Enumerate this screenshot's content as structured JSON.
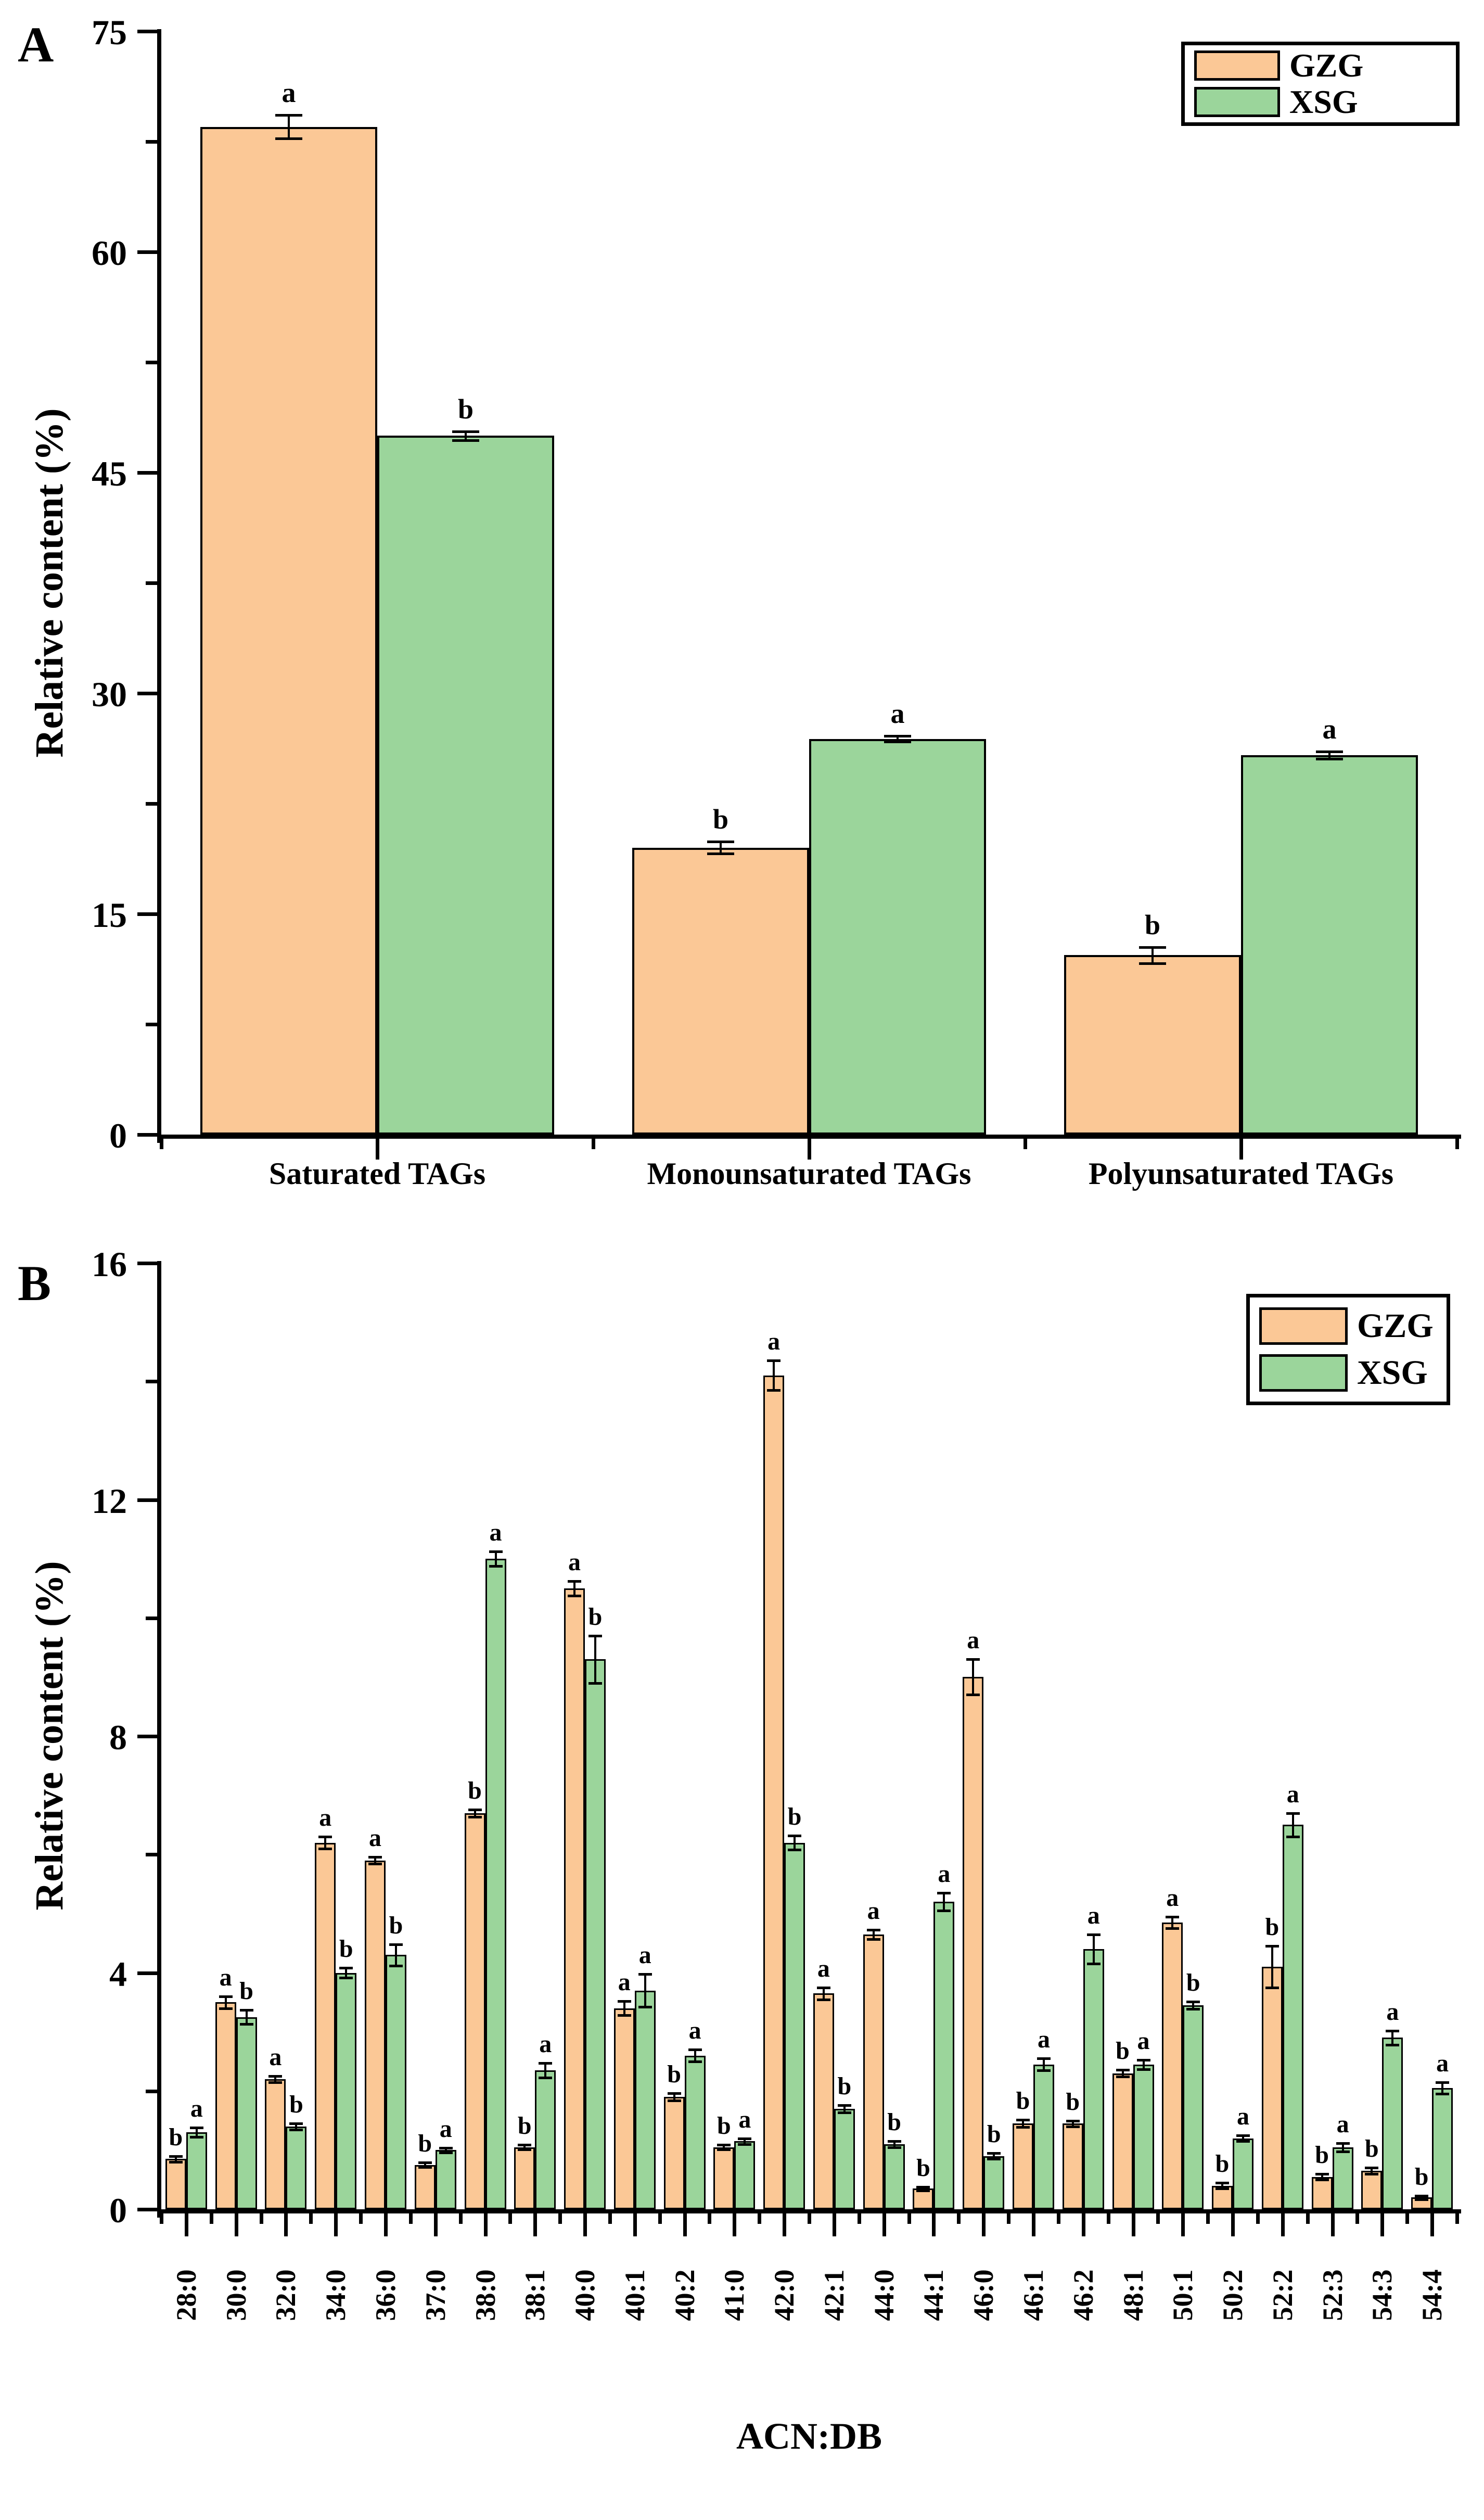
{
  "figure_title": "",
  "colors": {
    "gzg_fill": "#FBC896",
    "xsg_fill": "#9BD59B",
    "outline": "#000000",
    "background": "#FFFFFF"
  },
  "chart_data": [
    {
      "type": "bar",
      "panel_label": "A",
      "ylabel": "Relative content (%)",
      "xlabel": "",
      "ylim": [
        0,
        75
      ],
      "ytick_step": 15,
      "yminor_step": 7.5,
      "ytick_labels": [
        "0",
        "15",
        "30",
        "45",
        "60",
        "75"
      ],
      "grid": false,
      "legend": {
        "position": "top-right",
        "entries": [
          "GZG",
          "XSG"
        ]
      },
      "categories": [
        "Saturated TAGs",
        "Monounsaturated TAGs",
        "Polyunsaturated TAGs"
      ],
      "series": [
        {
          "name": "GZG",
          "color": "#FBC896",
          "values": [
            68.5,
            19.5,
            12.2
          ],
          "errors": [
            0.8,
            0.4,
            0.55
          ],
          "sig_letters": [
            "a",
            "b",
            "b"
          ]
        },
        {
          "name": "XSG",
          "color": "#9BD59B",
          "values": [
            47.5,
            26.9,
            25.8
          ],
          "errors": [
            0.3,
            0.2,
            0.25
          ],
          "sig_letters": [
            "b",
            "a",
            "a"
          ]
        }
      ]
    },
    {
      "type": "bar",
      "panel_label": "B",
      "ylabel": "Relative content (%)",
      "xlabel": "ACN:DB",
      "ylim": [
        0,
        16
      ],
      "ytick_step": 4,
      "yminor_step": 2,
      "ytick_labels": [
        "0",
        "4",
        "8",
        "12",
        "16"
      ],
      "grid": false,
      "legend": {
        "position": "top-right",
        "entries": [
          "GZG",
          "XSG"
        ]
      },
      "categories": [
        "28:0",
        "30:0",
        "32:0",
        "34:0",
        "36:0",
        "37:0",
        "38:0",
        "38:1",
        "40:0",
        "40:1",
        "40:2",
        "41:0",
        "42:0",
        "42:1",
        "44:0",
        "44:1",
        "46:0",
        "46:1",
        "46:2",
        "48:1",
        "50:1",
        "50:2",
        "52:2",
        "52:3",
        "54:3",
        "54:4"
      ],
      "series": [
        {
          "name": "GZG",
          "color": "#FBC896",
          "values": [
            0.85,
            3.5,
            2.2,
            6.2,
            5.9,
            0.75,
            6.7,
            1.05,
            10.5,
            3.4,
            1.9,
            1.05,
            14.1,
            3.65,
            4.65,
            0.35,
            9.0,
            1.45,
            1.45,
            2.3,
            4.85,
            0.4,
            4.1,
            0.55,
            0.65,
            0.2
          ],
          "errors": [
            0.05,
            0.1,
            0.05,
            0.1,
            0.06,
            0.04,
            0.06,
            0.04,
            0.12,
            0.12,
            0.06,
            0.04,
            0.25,
            0.1,
            0.08,
            0.03,
            0.3,
            0.06,
            0.05,
            0.06,
            0.1,
            0.05,
            0.35,
            0.05,
            0.05,
            0.03
          ],
          "sig_letters": [
            "b",
            "a",
            "a",
            "a",
            "a",
            "b",
            "b",
            "b",
            "a",
            "a",
            "b",
            "b",
            "a",
            "a",
            "a",
            "b",
            "a",
            "b",
            "b",
            "b",
            "a",
            "b",
            "b",
            "b",
            "b",
            "b"
          ]
        },
        {
          "name": "XSG",
          "color": "#9BD59B",
          "values": [
            1.3,
            3.25,
            1.4,
            4.0,
            4.3,
            1.0,
            11.0,
            2.35,
            9.3,
            3.7,
            2.6,
            1.15,
            6.2,
            1.7,
            1.1,
            5.2,
            0.9,
            2.45,
            4.4,
            2.45,
            3.45,
            1.2,
            6.5,
            1.05,
            2.9,
            2.05
          ],
          "errors": [
            0.08,
            0.12,
            0.05,
            0.08,
            0.18,
            0.04,
            0.12,
            0.12,
            0.4,
            0.28,
            0.1,
            0.05,
            0.12,
            0.06,
            0.05,
            0.15,
            0.05,
            0.1,
            0.25,
            0.08,
            0.06,
            0.05,
            0.2,
            0.07,
            0.12,
            0.1
          ],
          "sig_letters": [
            "a",
            "b",
            "b",
            "b",
            "b",
            "a",
            "a",
            "a",
            "b",
            "a",
            "a",
            "a",
            "b",
            "b",
            "b",
            "a",
            "b",
            "a",
            "a",
            "a",
            "b",
            "a",
            "a",
            "a",
            "a",
            "a"
          ]
        }
      ]
    }
  ]
}
